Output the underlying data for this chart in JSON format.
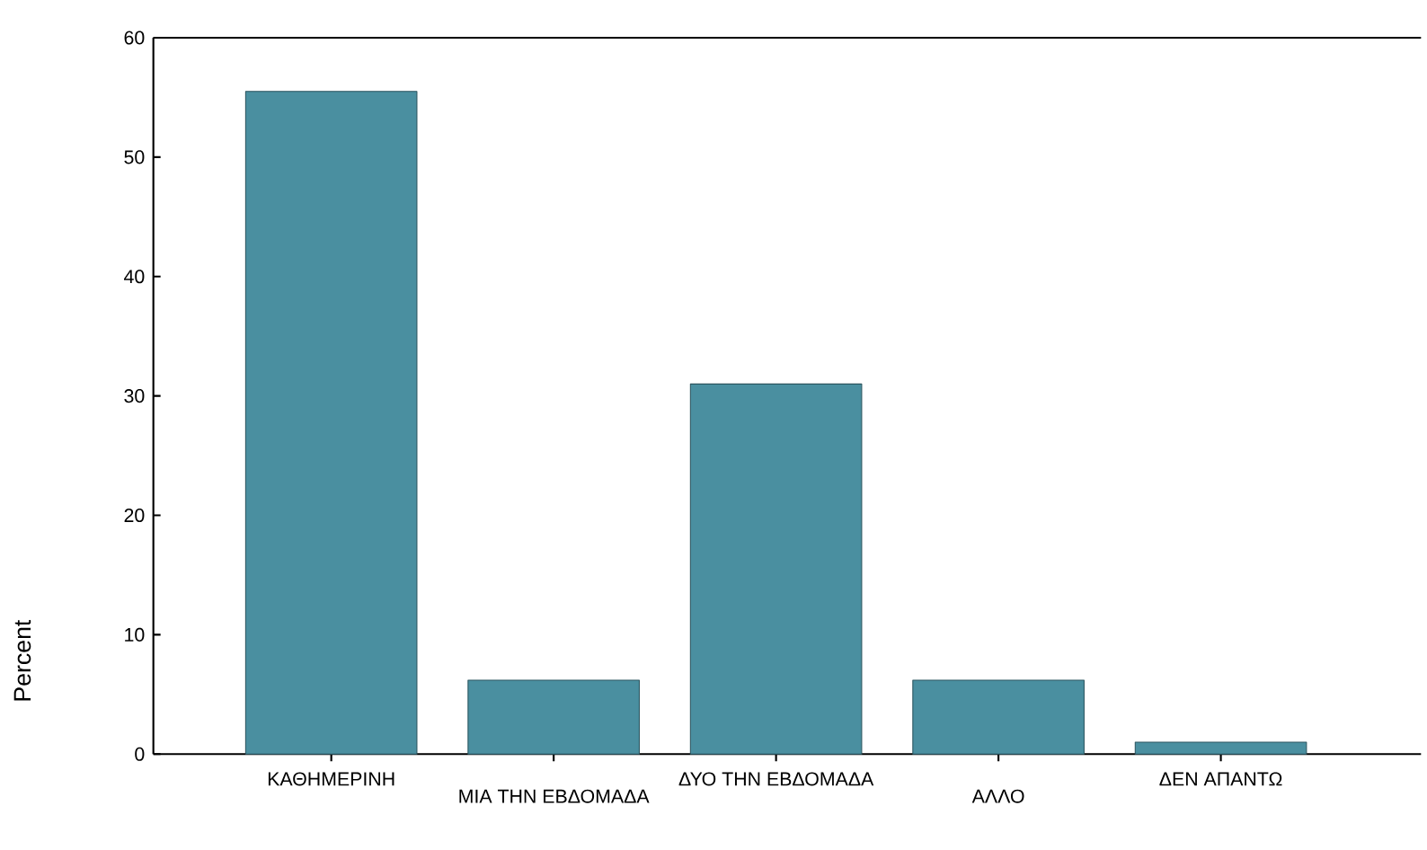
{
  "chart_data": {
    "type": "bar",
    "ylabel": "Percent",
    "categories": [
      "ΚΑΘΗΜΕΡΙΝΗ",
      "ΜΙΑ ΤΗΝ ΕΒΔΟΜΑΔΑ",
      "ΔΥΟ ΤΗΝ ΕΒΔΟΜΑΔΑ",
      "ΑΛΛΟ",
      "ΔΕΝ ΑΠΑΝΤΩ"
    ],
    "values": [
      55.5,
      6.2,
      31,
      6.2,
      1
    ],
    "color": "#4a8fa0",
    "ylim": [
      0,
      60
    ],
    "yticks": [
      0,
      10,
      20,
      30,
      40,
      50,
      60
    ]
  }
}
